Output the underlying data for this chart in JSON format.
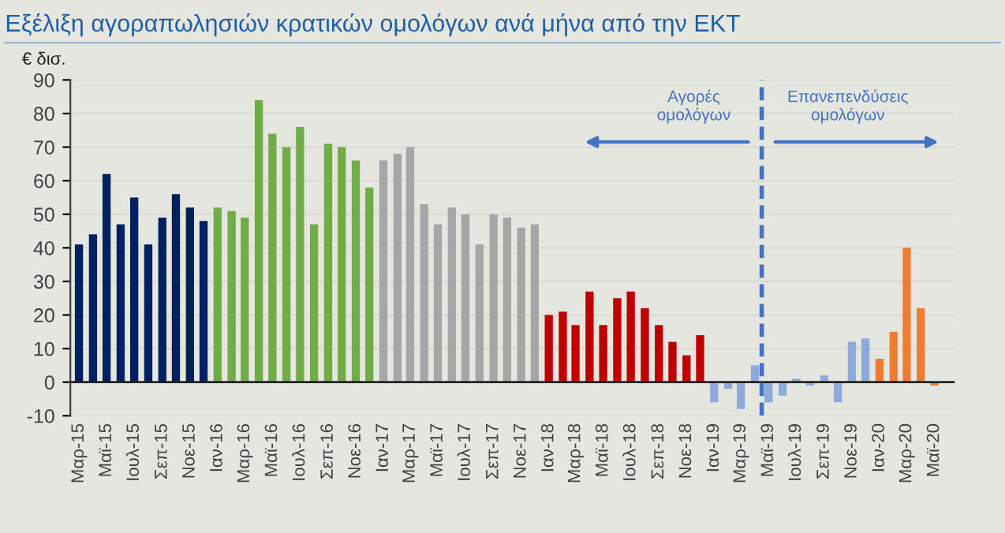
{
  "chart_data": {
    "type": "bar",
    "title": "Εξέλιξη αγοραπωλησιών κρατικών ομολόγων ανά μήνα από την ΕΚΤ",
    "ylabel": "€ δισ.",
    "x": [
      "2015-03",
      "2015-04",
      "2015-05",
      "2015-06",
      "2015-07",
      "2015-08",
      "2015-09",
      "2015-10",
      "2015-11",
      "2015-12",
      "2016-01",
      "2016-02",
      "2016-03",
      "2016-04",
      "2016-05",
      "2016-06",
      "2016-07",
      "2016-08",
      "2016-09",
      "2016-10",
      "2016-11",
      "2016-12",
      "2017-01",
      "2017-02",
      "2017-03",
      "2017-04",
      "2017-05",
      "2017-06",
      "2017-07",
      "2017-08",
      "2017-09",
      "2017-10",
      "2017-11",
      "2017-12",
      "2018-01",
      "2018-02",
      "2018-03",
      "2018-04",
      "2018-05",
      "2018-06",
      "2018-07",
      "2018-08",
      "2018-09",
      "2018-10",
      "2018-11",
      "2018-12",
      "2019-01",
      "2019-02",
      "2019-03",
      "2019-04",
      "2019-05",
      "2019-06",
      "2019-07",
      "2019-08",
      "2019-09",
      "2019-10",
      "2019-11",
      "2019-12",
      "2020-01",
      "2020-02",
      "2020-03",
      "2020-04",
      "2020-05"
    ],
    "values": [
      41,
      44,
      62,
      47,
      55,
      41,
      49,
      56,
      52,
      48,
      52,
      51,
      49,
      84,
      74,
      70,
      76,
      47,
      71,
      70,
      66,
      58,
      66,
      68,
      70,
      53,
      47,
      52,
      50,
      41,
      50,
      49,
      46,
      47,
      20,
      21,
      17,
      27,
      17,
      25,
      27,
      22,
      17,
      12,
      8,
      14,
      -6,
      -2,
      -8,
      5,
      -6,
      -4,
      1,
      -1,
      2,
      -6,
      12,
      13,
      7,
      15,
      40,
      22,
      -1
    ],
    "colors": [
      "#002060",
      "#002060",
      "#002060",
      "#002060",
      "#002060",
      "#002060",
      "#002060",
      "#002060",
      "#002060",
      "#002060",
      "#70ad47",
      "#70ad47",
      "#70ad47",
      "#70ad47",
      "#70ad47",
      "#70ad47",
      "#70ad47",
      "#70ad47",
      "#70ad47",
      "#70ad47",
      "#70ad47",
      "#70ad47",
      "#a6a6a6",
      "#a6a6a6",
      "#a6a6a6",
      "#a6a6a6",
      "#a6a6a6",
      "#a6a6a6",
      "#a6a6a6",
      "#a6a6a6",
      "#a6a6a6",
      "#a6a6a6",
      "#a6a6a6",
      "#a6a6a6",
      "#c00000",
      "#c00000",
      "#c00000",
      "#c00000",
      "#c00000",
      "#c00000",
      "#c00000",
      "#c00000",
      "#c00000",
      "#c00000",
      "#c00000",
      "#c00000",
      "#8eaadb",
      "#8eaadb",
      "#8eaadb",
      "#8eaadb",
      "#8eaadb",
      "#8eaadb",
      "#8eaadb",
      "#8eaadb",
      "#8eaadb",
      "#8eaadb",
      "#8eaadb",
      "#8eaadb",
      "#ed7d31",
      "#ed7d31",
      "#ed7d31",
      "#ed7d31",
      "#ed7d31"
    ],
    "xlim": [
      "2015-02-10",
      "2020-06-15"
    ],
    "xticks": [
      {
        "value": "2015-03",
        "label": "Μαρ-15"
      },
      {
        "value": "2015-05",
        "label": "Μαϊ-15"
      },
      {
        "value": "2015-07",
        "label": "Ιουλ-15"
      },
      {
        "value": "2015-09",
        "label": "Σεπ-15"
      },
      {
        "value": "2015-11",
        "label": "Νοε-15"
      },
      {
        "value": "2016-01",
        "label": "Ιαν-16"
      },
      {
        "value": "2016-03",
        "label": "Μαρ-16"
      },
      {
        "value": "2016-05",
        "label": "Μαϊ-16"
      },
      {
        "value": "2016-07",
        "label": "Ιουλ-16"
      },
      {
        "value": "2016-09",
        "label": "Σεπ-16"
      },
      {
        "value": "2016-11",
        "label": "Νοε-16"
      },
      {
        "value": "2017-01",
        "label": "Ιαν-17"
      },
      {
        "value": "2017-03",
        "label": "Μαρ-17"
      },
      {
        "value": "2017-05",
        "label": "Μαϊ-17"
      },
      {
        "value": "2017-07",
        "label": "Ιουλ-17"
      },
      {
        "value": "2017-09",
        "label": "Σεπ-17"
      },
      {
        "value": "2017-11",
        "label": "Νοε-17"
      },
      {
        "value": "2018-01",
        "label": "Ιαν-18"
      },
      {
        "value": "2018-03",
        "label": "Μαρ-18"
      },
      {
        "value": "2018-05",
        "label": "Μαϊ-18"
      },
      {
        "value": "2018-07",
        "label": "Ιουλ-18"
      },
      {
        "value": "2018-09",
        "label": "Σεπ-18"
      },
      {
        "value": "2018-11",
        "label": "Νοε-18"
      },
      {
        "value": "2019-01",
        "label": "Ιαν-19"
      },
      {
        "value": "2019-03",
        "label": "Μαρ-19"
      },
      {
        "value": "2019-05",
        "label": "Μαϊ-19"
      },
      {
        "value": "2019-07",
        "label": "Ιουλ-19"
      },
      {
        "value": "2019-09",
        "label": "Σεπ-19"
      },
      {
        "value": "2019-11",
        "label": "Νοε-19"
      },
      {
        "value": "2020-01",
        "label": "Ιαν-20"
      },
      {
        "value": "2020-03",
        "label": "Μαρ-20"
      },
      {
        "value": "2020-05",
        "label": "Μαϊ-20"
      }
    ],
    "ylim": [
      -10,
      90
    ],
    "yticks": [
      -10,
      0,
      10,
      20,
      30,
      40,
      50,
      60,
      70,
      80,
      90
    ],
    "grid": "y",
    "ref_lines": [
      {
        "axis": "x",
        "value": "2019-04-16",
        "color": "#4472c4",
        "line_style": "dashed"
      }
    ],
    "annotations": [
      "Αγορές\nομολόγων",
      "Επανεπενδύσεις\nομολόγων"
    ]
  }
}
